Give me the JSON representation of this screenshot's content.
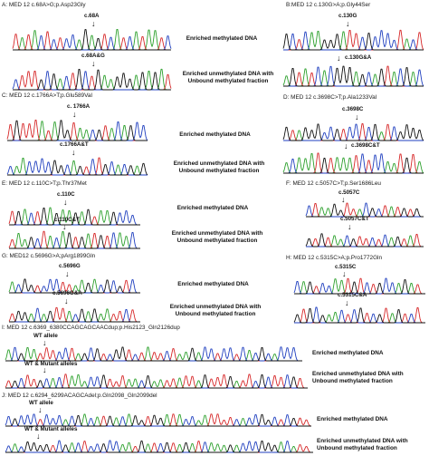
{
  "figure": {
    "colors": {
      "trace_green": "#2ca02c",
      "trace_red": "#d62728",
      "trace_blue": "#1f3fbf",
      "trace_black": "#111111"
    },
    "labels": {
      "enriched_methylated": "Enriched methylated DNA",
      "enriched_unmethylated_line1": "Enriched unmethylated DNA with",
      "enriched_unmethylated_line2": "Unbound methylated fraction"
    },
    "panels": {
      "A": {
        "title": "A: MED 12 c.68A>G;p.Asp23Gly",
        "top_label": "c.68A",
        "bottom_label": "c.68A&G"
      },
      "B": {
        "title": "B:MED 12 c.130G>A;p.Gly44Ser",
        "top_label": "c.130G",
        "bottom_label": "c.130G&A"
      },
      "C": {
        "title": "C: MED 12 c.1766A>T;p.Glu589Val",
        "top_label": "c. 1766A",
        "bottom_label": "c.1766A&T"
      },
      "D": {
        "title": "D: MED 12 c.3698C>T;p.Ala1233Val",
        "top_label": "c.3698C",
        "bottom_label": "c.3698C&T"
      },
      "E": {
        "title": "E: MED 12 c.110C>T;p.Thr37Met",
        "top_label": "c.110C",
        "bottom_label": "c.110C&T"
      },
      "F": {
        "title": "F: MED 12 c.5057C>T;p.Ser1686Leu",
        "top_label": "c.5057C",
        "bottom_label": "c.5057C&T"
      },
      "G": {
        "title": "G: MED12 c.5696G>A;pArg1899Gln",
        "top_label": "c.5696G",
        "bottom_label": "c.5696G&A"
      },
      "H": {
        "title": "H: MED 12 c.5315C>A;p.Pro1772Gln",
        "top_label": "c.5315C",
        "bottom_label": "c.5315C&A"
      },
      "I": {
        "title": "I: MED 12 c.6369_6380CCAGCAGCAACdup;p.His2123_Gln2126dup",
        "top_label": "WT allele",
        "bottom_label": "WT & Mutant alleles"
      },
      "J": {
        "title": "J: MED 12 c.6294_6299ACAGCAdel;p.Gln2098_Gln2099del",
        "top_label": "WT allele",
        "bottom_label": "WT & Mutant alleles"
      }
    }
  }
}
